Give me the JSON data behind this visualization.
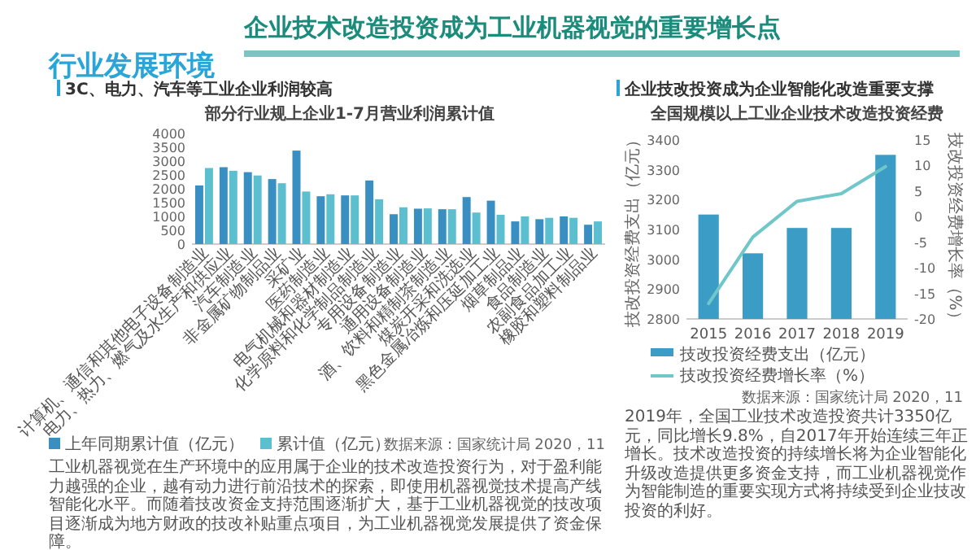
{
  "chart_data": [
    {
      "type": "other",
      "title": "企业技术改造投资成为工业机器视觉的重要增长点",
      "subtitle": "行业发展环境"
    },
    {
      "type": "bar",
      "title": "部分行业规上企业1-7月营业利润累计值",
      "subtitle": "3C、电力、汽车等工业企业利润较高",
      "categories": [
        "计算机、通信和其他电子设备制造业",
        "电力、热力、燃气及水生产和供应业",
        "汽车制造业",
        "非金属矿物制品业",
        "采矿业",
        "医药制造业",
        "电气机械和器材制造业",
        "化学原料和化学制品制造业",
        "专用设备制造业",
        "通用设备制造业",
        "酒、饮料和精制茶制造业",
        "煤炭开采和洗选业",
        "黑色金属冶炼和压延加工业",
        "烟草制品业",
        "食品制造业",
        "农副食品加工业",
        "橡胶和塑料制品业"
      ],
      "series": [
        {
          "name": "上年同期累计值（亿元）",
          "color": "#3a8fc2",
          "values": [
            2120,
            2780,
            2600,
            2350,
            3380,
            1730,
            1760,
            2300,
            1080,
            1280,
            1260,
            1700,
            1570,
            820,
            900,
            1000,
            700
          ]
        },
        {
          "name": "累计值（亿元）",
          "color": "#5cbfcf",
          "values": [
            2750,
            2650,
            2480,
            2200,
            1900,
            1800,
            1760,
            1620,
            1330,
            1290,
            1260,
            1140,
            1060,
            1000,
            950,
            950,
            820
          ]
        }
      ],
      "ylim": [
        0,
        4000
      ],
      "yticks": [
        0,
        500,
        1000,
        1500,
        2000,
        2500,
        3000,
        3500,
        4000
      ],
      "legend": "bottom",
      "annotations": [
        "数据来源：国家统计局 2020，11",
        "工业机器视觉在生产环境中的应用属于企业的技术改造投资行为，对于盈利能力越强的企业，越有动力进行前沿技术的探索，即使用机器视觉技术提高产线智能化水平。而随着技改资金支持范围逐渐扩大，基于工业机器视觉的技改项目逐渐成为地方财政的技改补贴重点项目，为工业机器视觉发展提供了资金保障。"
      ]
    },
    {
      "type": "bar",
      "title": "全国规模以上工业企业技术改造投资经费",
      "subtitle": "企业技改投资成为企业智能化改造重要支撑",
      "categories": [
        "2015",
        "2016",
        "2017",
        "2018",
        "2019"
      ],
      "series": [
        {
          "name": "技改投资经费支出（亿元）",
          "color": "#3b9dc5",
          "values": [
            3150,
            3020,
            3105,
            3105,
            3350
          ]
        },
        {
          "name": "技改投资经费增长率（%）",
          "type": "line",
          "axis": "y2",
          "color": "#6fc7c9",
          "values": [
            -17,
            -4,
            3,
            4.5,
            9.8
          ]
        }
      ],
      "ylabel": "技改投资经费支出（亿元）",
      "y2label": "技改投资经费增长率（%）",
      "ylim": [
        2800,
        3400
      ],
      "yticks": [
        2800,
        2900,
        3000,
        3100,
        3200,
        3300,
        3400
      ],
      "y2lim": [
        -20,
        15
      ],
      "y2ticks": [
        -20,
        -15,
        -10,
        -5,
        0,
        5,
        10,
        15
      ],
      "legend": "bottom",
      "annotations": [
        "数据来源：国家统计局 2020，11",
        "2019年，全国工业技术改造投资共计3350亿元，同比增长9.8%，自2017年开始连续三年正增长。技术改造投资的持续增长将为企业智能化升级改造提供更多资金支持，而工业机器视觉作为智能制造的重要实现方式将持续受到企业技改投资的利好。"
      ]
    }
  ]
}
